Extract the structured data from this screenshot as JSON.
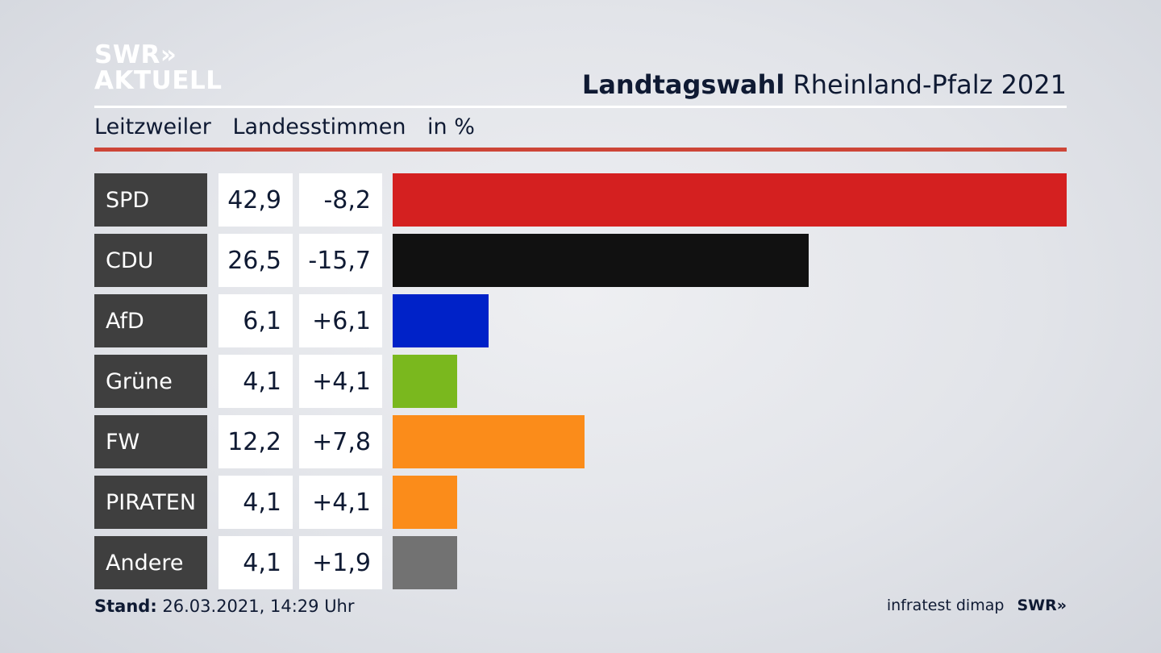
{
  "logo": {
    "line1": "SWR»",
    "line2": "AKTUELL"
  },
  "title": {
    "bold": "Landtagswahl",
    "rest": "Rheinland-Pfalz 2021"
  },
  "subhead": {
    "place": "Leitzweiler",
    "metric": "Landesstimmen",
    "unit": "in %"
  },
  "colors": {
    "accent_red": "#cd4537",
    "label_bg": "#3f3f3f"
  },
  "chart_data": {
    "type": "bar",
    "orientation": "horizontal",
    "categories": [
      "SPD",
      "CDU",
      "AfD",
      "Grüne",
      "FW",
      "PIRATEN",
      "Andere"
    ],
    "values": [
      42.9,
      26.5,
      6.1,
      4.1,
      12.2,
      4.1,
      4.1
    ],
    "value_labels": [
      "42,9",
      "26,5",
      "6,1",
      "4,1",
      "12,2",
      "4,1",
      "4,1"
    ],
    "diff_labels": [
      "-8,2",
      "-15,7",
      "+6,1",
      "+4,1",
      "+7,8",
      "+4,1",
      "+1,9"
    ],
    "colors": [
      "#d42020",
      "#111111",
      "#0022c8",
      "#7ab81e",
      "#fb8c1a",
      "#fb8c1a",
      "#727272"
    ],
    "xlim": [
      0,
      42.9
    ]
  },
  "footer": {
    "stand_label": "Stand:",
    "stand_value": "26.03.2021, 14:29 Uhr",
    "source": "infratest dimap",
    "brand": "SWR»"
  }
}
